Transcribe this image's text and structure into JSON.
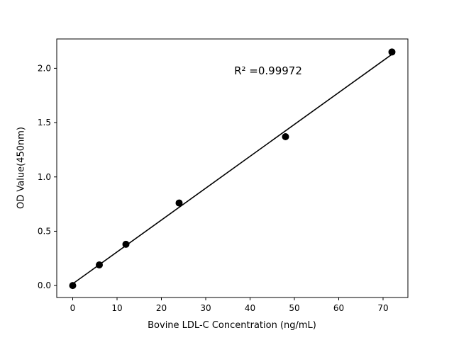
{
  "chart_data": {
    "type": "scatter",
    "title": "",
    "xlabel": "Bovine LDL-C Concentration (ng/mL)",
    "ylabel": "OD Value(450nm)",
    "annotation": "R² =0.99972",
    "x": [
      0,
      6,
      12,
      24,
      48,
      72
    ],
    "y": [
      0.0,
      0.19,
      0.38,
      0.76,
      1.37,
      2.15
    ],
    "fit_line": {
      "x_start": 0,
      "x_end": 72
    },
    "xlim": [
      -3.6,
      75.6
    ],
    "ylim": [
      -0.11,
      2.27
    ],
    "xticks": [
      0,
      10,
      20,
      30,
      40,
      50,
      60,
      70
    ],
    "yticks": [
      0.0,
      0.5,
      1.0,
      1.5,
      2.0
    ],
    "grid": false,
    "legend": "none",
    "marker_color": "#000000",
    "line_color": "#000000",
    "axis_color": "#000000",
    "background": "#ffffff"
  }
}
